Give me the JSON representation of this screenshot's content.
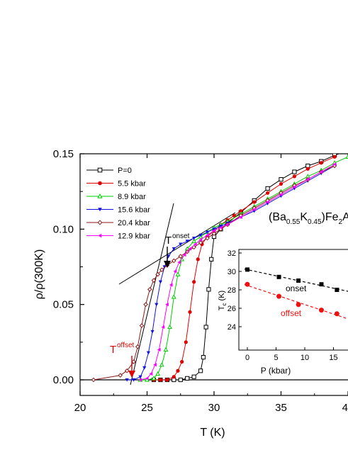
{
  "chart_data": [
    {
      "type": "scatter",
      "role": "main",
      "xlabel": "T (K)",
      "ylabel": "ρ/ρ(300K)",
      "xlim": [
        20,
        40
      ],
      "ylim": [
        -0.01,
        0.15
      ],
      "x_ticks": [
        "20",
        "25",
        "30",
        "35",
        "40"
      ],
      "y_ticks": [
        "0.00",
        "0.05",
        "0.10",
        "0.15"
      ],
      "compound": {
        "pre": "(Ba",
        "sub1": "0.55",
        "mid": "K",
        "sub2": "0.45",
        "post": ")Fe",
        "sub3": "2",
        "tail": "A"
      },
      "legend_position": "top-left",
      "series": [
        {
          "name": "P=0",
          "color": "#000000",
          "marker": "square-open",
          "x": [
            25.5,
            26.0,
            26.5,
            27.0,
            27.5,
            28.0,
            28.5,
            29.0,
            29.2,
            29.4,
            29.6,
            29.8,
            30.0,
            30.5,
            31,
            32,
            33,
            34,
            35,
            36,
            37,
            38,
            39,
            40
          ],
          "y": [
            0.0,
            0.0,
            0.0,
            0.0,
            0.0,
            0.001,
            0.002,
            0.006,
            0.015,
            0.035,
            0.06,
            0.08,
            0.095,
            0.1,
            0.104,
            0.111,
            0.119,
            0.127,
            0.133,
            0.138,
            0.142,
            0.145,
            0.149,
            0.152
          ]
        },
        {
          "name": "5.5 kbar",
          "color": "#e00000",
          "marker": "circle",
          "x": [
            25.5,
            26.0,
            26.5,
            27.0,
            27.3,
            27.6,
            27.9,
            28.2,
            28.5,
            28.8,
            29.1,
            29.5,
            30,
            30.5,
            31,
            31.5,
            32,
            33,
            34,
            35,
            36,
            37,
            38,
            39
          ],
          "y": [
            0.0,
            0.0,
            0.0,
            0.002,
            0.006,
            0.012,
            0.025,
            0.045,
            0.065,
            0.08,
            0.09,
            0.095,
            0.099,
            0.103,
            0.106,
            0.109,
            0.112,
            0.118,
            0.124,
            0.13,
            0.135,
            0.14,
            0.144,
            0.148
          ]
        },
        {
          "name": "8.9 kbar",
          "color": "#00cc00",
          "marker": "triangle-up-open",
          "x": [
            24.5,
            25.0,
            25.5,
            25.8,
            26.1,
            26.4,
            26.7,
            27.0,
            27.3,
            27.6,
            28.0,
            28.5,
            29,
            29.5,
            30,
            30.5,
            31,
            32,
            33,
            34,
            35,
            36,
            37,
            38,
            39,
            40
          ],
          "y": [
            0.0,
            0.0,
            0.001,
            0.004,
            0.01,
            0.02,
            0.035,
            0.055,
            0.07,
            0.08,
            0.087,
            0.092,
            0.095,
            0.098,
            0.101,
            0.103,
            0.105,
            0.11,
            0.115,
            0.12,
            0.125,
            0.13,
            0.135,
            0.139,
            0.144,
            0.148
          ]
        },
        {
          "name": "15.6 kbar",
          "color": "#1010e0",
          "marker": "triangle-down",
          "x": [
            23.5,
            24.0,
            24.5,
            24.8,
            25.1,
            25.4,
            25.7,
            26.0,
            26.3,
            26.6,
            27.0,
            27.5,
            28,
            28.5,
            29,
            29.5,
            30,
            30.5,
            31,
            32,
            33,
            34,
            35,
            36,
            37,
            38,
            39
          ],
          "y": [
            0.0,
            0.0,
            0.002,
            0.008,
            0.018,
            0.032,
            0.05,
            0.065,
            0.075,
            0.082,
            0.087,
            0.09,
            0.092,
            0.094,
            0.096,
            0.098,
            0.1,
            0.102,
            0.104,
            0.108,
            0.112,
            0.117,
            0.122,
            0.127,
            0.132,
            0.137,
            0.142
          ]
        },
        {
          "name": "20.4 kbar",
          "color": "#8b1a1a",
          "marker": "diamond-open",
          "x": [
            21,
            23,
            23.5,
            24.0,
            24.3,
            24.6,
            24.9,
            25.2,
            25.5,
            25.8,
            26.1,
            26.5,
            27,
            27.5,
            28,
            28.5,
            29,
            29.5,
            30,
            30.5,
            31,
            32,
            33,
            34,
            35,
            36,
            37,
            38,
            39
          ],
          "y": [
            0.0,
            0.003,
            0.006,
            0.012,
            0.022,
            0.036,
            0.05,
            0.06,
            0.066,
            0.07,
            0.073,
            0.076,
            0.079,
            0.082,
            0.085,
            0.088,
            0.091,
            0.094,
            0.097,
            0.1,
            0.103,
            0.109,
            0.114,
            0.119,
            0.124,
            0.129,
            0.133,
            0.138,
            0.142
          ]
        },
        {
          "name": "12.9 kbar",
          "color": "#ff00ff",
          "marker": "triangle-left",
          "x": [
            24.5,
            25.0,
            25.3,
            25.6,
            25.9,
            26.2,
            26.5,
            26.8,
            27.1,
            27.4,
            27.8,
            28.2,
            28.6,
            29.0,
            29.5,
            30,
            30.5,
            31,
            32,
            33,
            34,
            35,
            36,
            37,
            38,
            39
          ],
          "y": [
            0.0,
            0.001,
            0.004,
            0.01,
            0.02,
            0.035,
            0.05,
            0.063,
            0.072,
            0.078,
            0.083,
            0.087,
            0.09,
            0.093,
            0.096,
            0.099,
            0.101,
            0.103,
            0.108,
            0.113,
            0.118,
            0.123,
            0.128,
            0.133,
            0.138,
            0.143
          ]
        }
      ],
      "annotations": {
        "onset": {
          "base": "T",
          "sup": "onset",
          "x": 26.9
        },
        "offset": {
          "base": "T",
          "sup": "offset",
          "x": 23.9,
          "color": "#e00000"
        }
      }
    },
    {
      "type": "scatter",
      "role": "inset",
      "xlabel": "P (kbar)",
      "ylabel_base": "T",
      "ylabel_sub": "c",
      "ylabel_unit": " (K)",
      "xlim": [
        -2,
        19
      ],
      "ylim": [
        23.5,
        32
      ],
      "x_ticks": [
        "0",
        "5",
        "10",
        "15"
      ],
      "y_ticks": [
        "24",
        "26",
        "28",
        "30",
        "32"
      ],
      "series": [
        {
          "name": "onset",
          "color": "#000000",
          "marker": "square",
          "x": [
            0,
            5.5,
            8.9,
            12.9,
            15.6
          ],
          "y": [
            30.2,
            29.4,
            29.0,
            28.6,
            28.0
          ]
        },
        {
          "name": "offset",
          "color": "#ee1111",
          "marker": "circle",
          "x": [
            0,
            5.5,
            8.9,
            12.9,
            15.6
          ],
          "y": [
            28.6,
            27.3,
            26.4,
            25.8,
            25.4
          ]
        }
      ]
    }
  ]
}
